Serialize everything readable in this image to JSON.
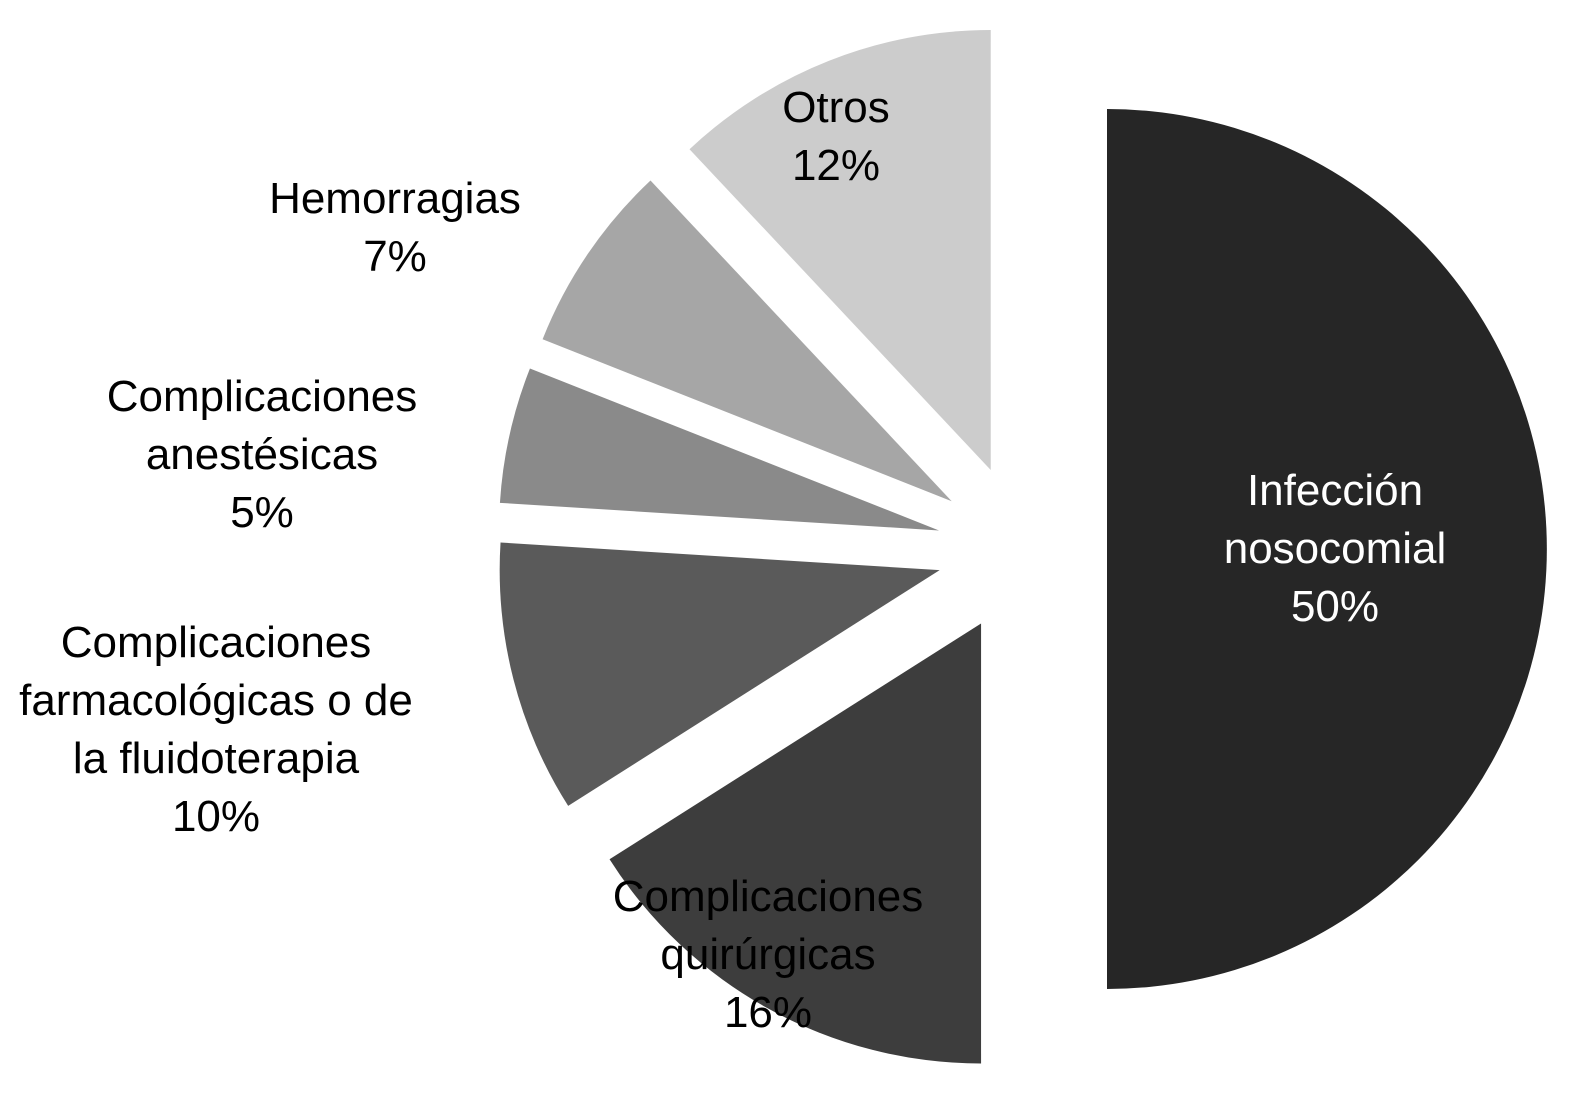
{
  "chart_data": {
    "type": "pie",
    "categories": [
      "Infección nosocomial",
      "Complicaciones quirúrgicas",
      "Complicaciones farmacológicas o de la fluidoterapia",
      "Complicaciones anestésicas",
      "Hemorragias",
      "Otros"
    ],
    "values": [
      50,
      16,
      10,
      5,
      7,
      12
    ],
    "value_labels": [
      "50%",
      "16%",
      "10%",
      "5%",
      "7%",
      "12%"
    ],
    "colors": [
      "#262626",
      "#3d3d3d",
      "#5a5a5a",
      "#8a8a8a",
      "#a6a6a6",
      "#cccccc"
    ]
  }
}
